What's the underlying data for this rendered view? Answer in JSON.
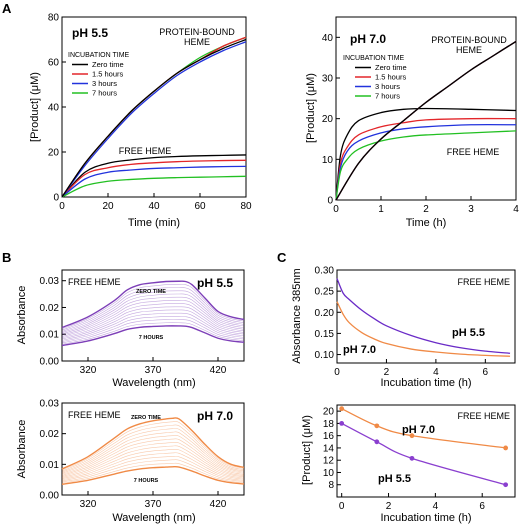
{
  "panel_labels": [
    "A",
    "B",
    "C"
  ],
  "chart_data": [
    {
      "id": "A1",
      "type": "line",
      "title": "pH 5.5",
      "xlabel": "Time (min)",
      "ylabel": "[Product] (μM)",
      "xlim": [
        0,
        80
      ],
      "ylim": [
        0,
        80
      ],
      "xticks": [
        "0",
        "20",
        "40",
        "60",
        "80"
      ],
      "yticks": [
        "0",
        "20",
        "40",
        "60",
        "80"
      ],
      "legend_title": "INCUBATION TIME",
      "annotations": [
        "PROTEIN-BOUND\nHEME",
        "FREE HEME"
      ],
      "series": [
        {
          "name": "Zero time",
          "color": "#000000",
          "group": "protein-bound",
          "x": [
            0,
            10,
            20,
            30,
            40,
            50,
            60,
            70,
            80
          ],
          "y": [
            0,
            15,
            27,
            38,
            47,
            55,
            61,
            66,
            70
          ]
        },
        {
          "name": "1.5 hours",
          "color": "#e3262a",
          "group": "protein-bound",
          "x": [
            0,
            10,
            20,
            30,
            40,
            50,
            60,
            70,
            80
          ],
          "y": [
            0,
            15,
            27,
            38,
            47,
            55,
            61,
            67,
            71
          ]
        },
        {
          "name": "3 hours",
          "color": "#2233dd",
          "group": "protein-bound",
          "x": [
            0,
            10,
            20,
            30,
            40,
            50,
            60,
            70,
            80
          ],
          "y": [
            0,
            14,
            26,
            37,
            46,
            54,
            60,
            65,
            69
          ]
        },
        {
          "name": "7 hours",
          "color": "#22c022",
          "group": "protein-bound",
          "x": [
            0,
            10,
            20,
            30,
            40,
            50,
            60,
            70,
            80
          ],
          "y": [
            0,
            15,
            27,
            38,
            47,
            55,
            62,
            67,
            71
          ]
        },
        {
          "name": "Zero time",
          "color": "#000000",
          "group": "free",
          "x": [
            0,
            10,
            20,
            30,
            40,
            50,
            60,
            70,
            80
          ],
          "y": [
            0,
            11,
            15,
            16.5,
            17.5,
            18,
            18.3,
            18.5,
            18.7
          ]
        },
        {
          "name": "1.5 hours",
          "color": "#e3262a",
          "group": "free",
          "x": [
            0,
            10,
            20,
            30,
            40,
            50,
            60,
            70,
            80
          ],
          "y": [
            0,
            10,
            13,
            14.5,
            15.2,
            15.7,
            16,
            16.2,
            16.3
          ]
        },
        {
          "name": "3 hours",
          "color": "#2233dd",
          "group": "free",
          "x": [
            0,
            10,
            20,
            30,
            40,
            50,
            60,
            70,
            80
          ],
          "y": [
            0,
            8,
            11,
            12,
            12.7,
            13,
            13.3,
            13.5,
            13.6
          ]
        },
        {
          "name": "7 hours",
          "color": "#22c022",
          "group": "free",
          "x": [
            0,
            10,
            20,
            30,
            40,
            50,
            60,
            70,
            80
          ],
          "y": [
            0,
            5,
            7,
            7.8,
            8.3,
            8.6,
            8.8,
            9,
            9.2
          ]
        }
      ]
    },
    {
      "id": "A2",
      "type": "line",
      "title": "pH 7.0",
      "xlabel": "Time (h)",
      "ylabel": "[Product] (μM)",
      "xlim": [
        0,
        4
      ],
      "ylim": [
        0,
        45
      ],
      "xticks": [
        "0",
        "1",
        "2",
        "3",
        "4"
      ],
      "yticks": [
        "0",
        "10",
        "20",
        "30",
        "40"
      ],
      "legend_title": "INCUBATION TIME",
      "annotations": [
        "PROTEIN-BOUND\nHEME",
        "FREE HEME"
      ],
      "series": [
        {
          "name": "Zero time",
          "color": "#000000",
          "group": "protein-bound",
          "x": [
            0,
            0.5,
            1,
            1.5,
            2,
            2.5,
            3,
            3.5,
            4
          ],
          "y": [
            0,
            9,
            15,
            19.5,
            24,
            28,
            32,
            35.5,
            39
          ]
        },
        {
          "name": "1.5 hours",
          "color": "#e3262a",
          "group": "protein-bound",
          "x": [
            0,
            0.5,
            1,
            1.5,
            2,
            2.5,
            3,
            3.5,
            4
          ],
          "y": [
            0,
            9,
            15,
            19.5,
            24,
            28,
            32,
            35.5,
            39
          ]
        },
        {
          "name": "3 hours",
          "color": "#2233dd",
          "group": "protein-bound",
          "x": [
            0,
            0.5,
            1,
            1.5,
            2,
            2.5,
            3,
            3.5,
            4
          ],
          "y": [
            0,
            9,
            15,
            19.5,
            24,
            28,
            32,
            35.5,
            39
          ]
        },
        {
          "name": "7 hours",
          "color": "#22c022",
          "group": "protein-bound",
          "x": [
            0,
            0.5,
            1,
            1.5,
            2,
            2.5,
            3,
            3.5,
            4
          ],
          "y": [
            0,
            9,
            15,
            19.5,
            24,
            28,
            32,
            35.5,
            39
          ]
        },
        {
          "name": "Zero time",
          "color": "#000000",
          "group": "free",
          "x": [
            0,
            0.1,
            0.25,
            0.5,
            1,
            1.5,
            2,
            3,
            4
          ],
          "y": [
            0,
            11,
            16,
            19.5,
            21.5,
            22.3,
            22.5,
            22.3,
            22
          ]
        },
        {
          "name": "1.5 hours",
          "color": "#e3262a",
          "group": "free",
          "x": [
            0,
            0.1,
            0.25,
            0.5,
            1,
            1.5,
            2,
            3,
            4
          ],
          "y": [
            0,
            9,
            13,
            16,
            18,
            19,
            19.7,
            20,
            20
          ]
        },
        {
          "name": "3 hours",
          "color": "#2233dd",
          "group": "free",
          "x": [
            0,
            0.1,
            0.25,
            0.5,
            1,
            1.5,
            2,
            3,
            4
          ],
          "y": [
            0,
            8,
            12,
            14.5,
            16.5,
            17.5,
            18,
            18.5,
            18.5
          ]
        },
        {
          "name": "7 hours",
          "color": "#22c022",
          "group": "free",
          "x": [
            0,
            0.1,
            0.25,
            0.5,
            1,
            1.5,
            2,
            3,
            4
          ],
          "y": [
            0,
            7,
            10,
            12.5,
            14.5,
            15.5,
            16,
            16.5,
            17
          ]
        }
      ]
    },
    {
      "id": "B1",
      "type": "line",
      "title": "pH 5.5",
      "xlabel": "Wavelength (nm)",
      "ylabel": "Absorbance",
      "xlim": [
        300,
        440
      ],
      "ylim": [
        0,
        0.034
      ],
      "xticks": [
        "320",
        "370",
        "420"
      ],
      "yticks": [
        "0.00",
        "0.01",
        "0.02",
        "0.03"
      ],
      "annotations": [
        "FREE HEME",
        "ZERO TIME",
        "7 HOURS"
      ],
      "color": "#7d3fb8",
      "series": [
        {
          "name": "ZERO TIME",
          "x": [
            300,
            320,
            340,
            350,
            360,
            370,
            380,
            390,
            395,
            400,
            410,
            420,
            430,
            440
          ],
          "y": [
            0.0125,
            0.0165,
            0.0225,
            0.0265,
            0.0285,
            0.0292,
            0.0297,
            0.0298,
            0.0297,
            0.0285,
            0.0235,
            0.0185,
            0.0165,
            0.0155
          ]
        },
        {
          "name": "7 HOURS",
          "x": [
            300,
            320,
            340,
            350,
            360,
            370,
            380,
            390,
            395,
            400,
            410,
            420,
            430,
            440
          ],
          "y": [
            0.0058,
            0.0075,
            0.0102,
            0.0118,
            0.0126,
            0.0129,
            0.0131,
            0.0131,
            0.013,
            0.0125,
            0.0105,
            0.0085,
            0.0075,
            0.007
          ]
        }
      ]
    },
    {
      "id": "B2",
      "type": "line",
      "title": "pH 7.0",
      "xlabel": "Wavelength (nm)",
      "ylabel": "Absorbance",
      "xlim": [
        300,
        440
      ],
      "ylim": [
        0,
        0.03
      ],
      "xticks": [
        "320",
        "370",
        "420"
      ],
      "yticks": [
        "0.00",
        "0.01",
        "0.02",
        "0.03"
      ],
      "annotations": [
        "FREE HEME",
        "ZERO TIME",
        "7 HOURS"
      ],
      "color": "#f08a46",
      "series": [
        {
          "name": "ZERO TIME",
          "x": [
            300,
            320,
            340,
            350,
            360,
            370,
            380,
            385,
            390,
            400,
            410,
            420,
            430,
            440
          ],
          "y": [
            0.0085,
            0.0125,
            0.0185,
            0.0215,
            0.0232,
            0.0242,
            0.0248,
            0.025,
            0.0248,
            0.021,
            0.0165,
            0.0125,
            0.01,
            0.009
          ]
        },
        {
          "name": "7 HOURS",
          "x": [
            300,
            320,
            340,
            350,
            360,
            370,
            380,
            385,
            390,
            400,
            410,
            420,
            430,
            440
          ],
          "y": [
            0.0035,
            0.0048,
            0.0068,
            0.0078,
            0.0085,
            0.0089,
            0.0091,
            0.0092,
            0.0091,
            0.0078,
            0.0062,
            0.0048,
            0.004,
            0.0036
          ]
        }
      ]
    },
    {
      "id": "C1",
      "type": "line",
      "title": "FREE HEME",
      "xlabel": "Incubation time (h)",
      "ylabel": "Absorbance 385nm",
      "xlim": [
        0,
        7.2
      ],
      "ylim": [
        0.08,
        0.3
      ],
      "xticks": [
        "0",
        "2",
        "4",
        "6"
      ],
      "yticks": [
        "0.10",
        "0.15",
        "0.20",
        "0.25",
        "0.30"
      ],
      "series": [
        {
          "name": "pH 5.5",
          "color": "#6a2bc7",
          "x": [
            0,
            0.25,
            0.5,
            1,
            1.5,
            2,
            3,
            4,
            5,
            6,
            7
          ],
          "y": [
            0.28,
            0.245,
            0.23,
            0.205,
            0.185,
            0.168,
            0.145,
            0.128,
            0.116,
            0.108,
            0.103
          ]
        },
        {
          "name": "pH 7.0",
          "color": "#f08a46",
          "x": [
            0,
            0.25,
            0.5,
            1,
            1.5,
            2,
            3,
            4,
            5,
            6,
            7
          ],
          "y": [
            0.225,
            0.195,
            0.175,
            0.152,
            0.137,
            0.126,
            0.113,
            0.106,
            0.101,
            0.098,
            0.096
          ]
        }
      ]
    },
    {
      "id": "C2",
      "type": "line",
      "title": "FREE HEME",
      "xlabel": "Incubation time (h)",
      "ylabel": "[Product] (μM)",
      "xlim": [
        -0.2,
        7.4
      ],
      "ylim": [
        6,
        21
      ],
      "xticks": [
        "0",
        "2",
        "4",
        "6"
      ],
      "yticks": [
        "8",
        "10",
        "12",
        "14",
        "16",
        "18",
        "20"
      ],
      "series": [
        {
          "name": "pH 7.0",
          "color": "#f08a46",
          "x": [
            0,
            1.5,
            3,
            7
          ],
          "y": [
            20.4,
            17.6,
            16.0,
            14.0
          ]
        },
        {
          "name": "pH 5.5",
          "color": "#8a3fcf",
          "x": [
            0,
            1.5,
            3,
            7
          ],
          "y": [
            18.0,
            15.0,
            12.3,
            8.0
          ]
        }
      ]
    }
  ]
}
